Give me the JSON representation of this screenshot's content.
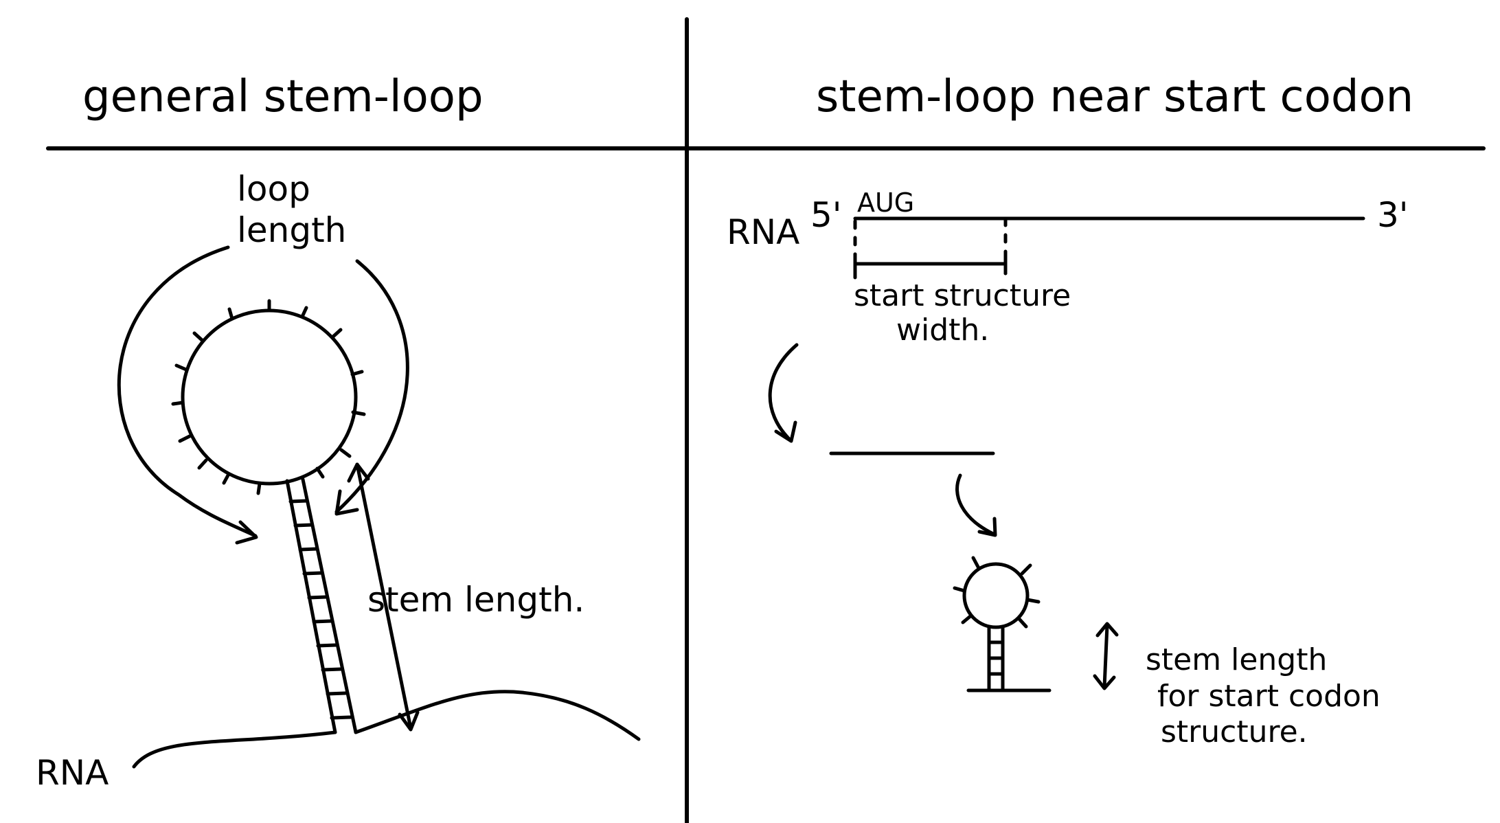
{
  "colors": {
    "ink": "#000000",
    "background": "#ffffff"
  },
  "left_panel": {
    "title": "general stem-loop",
    "loop_label_line1": "loop",
    "loop_label_line2": "length",
    "stem_label": "stem length.",
    "rna_label": "RNA"
  },
  "right_panel": {
    "title": "stem-loop near start codon",
    "rna_label": "RNA",
    "five_prime": "5'",
    "three_prime": "3'",
    "start_codon": "AUG",
    "width_label_line1": "start structure",
    "width_label_line2": "width.",
    "stem_label_line1": "stem length",
    "stem_label_line2": "for start codon",
    "stem_label_line3": "structure."
  }
}
